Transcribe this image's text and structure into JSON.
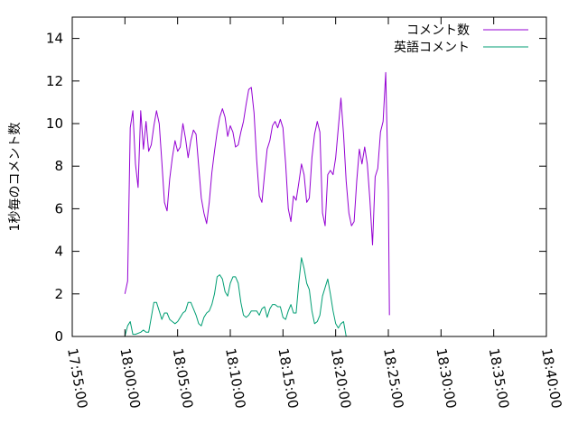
{
  "chart_data": {
    "type": "line",
    "title": "",
    "xlabel": "",
    "ylabel": "1秒毎のコメント数",
    "xlim": [
      "17:55:00",
      "18:40:00"
    ],
    "ylim": [
      0,
      15
    ],
    "x_ticks": [
      "17:55:00",
      "18:00:00",
      "18:05:00",
      "18:10:00",
      "18:15:00",
      "18:20:00",
      "18:25:00",
      "18:30:00",
      "18:35:00",
      "18:40:00"
    ],
    "y_ticks": [
      0,
      2,
      4,
      6,
      8,
      10,
      12,
      14
    ],
    "grid": false,
    "legend_position": "top-right",
    "series": [
      {
        "name": "コメント数",
        "color": "#9400d3",
        "points": [
          [
            "18:00:00",
            2.0
          ],
          [
            "18:00:15",
            2.6
          ],
          [
            "18:00:30",
            9.8
          ],
          [
            "18:00:45",
            10.6
          ],
          [
            "18:01:00",
            8.1
          ],
          [
            "18:01:15",
            7.0
          ],
          [
            "18:01:30",
            10.6
          ],
          [
            "18:01:45",
            8.8
          ],
          [
            "18:02:00",
            10.1
          ],
          [
            "18:02:15",
            8.7
          ],
          [
            "18:02:30",
            9.0
          ],
          [
            "18:02:45",
            9.9
          ],
          [
            "18:03:00",
            10.6
          ],
          [
            "18:03:15",
            10.0
          ],
          [
            "18:03:30",
            8.2
          ],
          [
            "18:03:45",
            6.3
          ],
          [
            "18:04:00",
            5.9
          ],
          [
            "18:04:15",
            7.4
          ],
          [
            "18:04:30",
            8.4
          ],
          [
            "18:04:45",
            9.2
          ],
          [
            "18:05:00",
            8.7
          ],
          [
            "18:05:15",
            8.9
          ],
          [
            "18:05:30",
            10.0
          ],
          [
            "18:05:45",
            9.3
          ],
          [
            "18:06:00",
            8.4
          ],
          [
            "18:06:15",
            9.2
          ],
          [
            "18:06:30",
            9.7
          ],
          [
            "18:06:45",
            9.5
          ],
          [
            "18:07:00",
            8.0
          ],
          [
            "18:07:15",
            6.5
          ],
          [
            "18:07:30",
            5.8
          ],
          [
            "18:07:45",
            5.3
          ],
          [
            "18:08:00",
            6.3
          ],
          [
            "18:08:15",
            7.7
          ],
          [
            "18:08:30",
            8.7
          ],
          [
            "18:08:45",
            9.6
          ],
          [
            "18:09:00",
            10.3
          ],
          [
            "18:09:15",
            10.7
          ],
          [
            "18:09:30",
            10.3
          ],
          [
            "18:09:45",
            9.4
          ],
          [
            "18:10:00",
            9.9
          ],
          [
            "18:10:15",
            9.6
          ],
          [
            "18:10:30",
            8.9
          ],
          [
            "18:10:45",
            9.0
          ],
          [
            "18:11:00",
            9.6
          ],
          [
            "18:11:15",
            10.1
          ],
          [
            "18:11:30",
            10.9
          ],
          [
            "18:11:45",
            11.6
          ],
          [
            "18:12:00",
            11.7
          ],
          [
            "18:12:15",
            10.5
          ],
          [
            "18:12:30",
            8.3
          ],
          [
            "18:12:45",
            6.6
          ],
          [
            "18:13:00",
            6.3
          ],
          [
            "18:13:15",
            7.6
          ],
          [
            "18:13:30",
            8.8
          ],
          [
            "18:13:45",
            9.2
          ],
          [
            "18:14:00",
            9.9
          ],
          [
            "18:14:15",
            10.1
          ],
          [
            "18:14:30",
            9.8
          ],
          [
            "18:14:45",
            10.2
          ],
          [
            "18:15:00",
            9.8
          ],
          [
            "18:15:15",
            8.1
          ],
          [
            "18:15:30",
            6.0
          ],
          [
            "18:15:45",
            5.4
          ],
          [
            "18:16:00",
            6.6
          ],
          [
            "18:16:15",
            6.4
          ],
          [
            "18:16:30",
            7.2
          ],
          [
            "18:16:45",
            8.1
          ],
          [
            "18:17:00",
            7.6
          ],
          [
            "18:17:15",
            6.3
          ],
          [
            "18:17:30",
            6.5
          ],
          [
            "18:17:45",
            8.4
          ],
          [
            "18:18:00",
            9.5
          ],
          [
            "18:18:15",
            10.1
          ],
          [
            "18:18:30",
            9.6
          ],
          [
            "18:18:45",
            5.8
          ],
          [
            "18:19:00",
            5.2
          ],
          [
            "18:19:15",
            7.6
          ],
          [
            "18:19:30",
            7.8
          ],
          [
            "18:19:45",
            7.6
          ],
          [
            "18:20:00",
            8.4
          ],
          [
            "18:20:15",
            9.8
          ],
          [
            "18:20:30",
            11.2
          ],
          [
            "18:20:45",
            9.5
          ],
          [
            "18:21:00",
            7.3
          ],
          [
            "18:21:15",
            5.8
          ],
          [
            "18:21:30",
            5.2
          ],
          [
            "18:21:45",
            5.4
          ],
          [
            "18:22:00",
            7.3
          ],
          [
            "18:22:15",
            8.8
          ],
          [
            "18:22:30",
            8.1
          ],
          [
            "18:22:45",
            8.9
          ],
          [
            "18:23:00",
            8.1
          ],
          [
            "18:23:15",
            6.4
          ],
          [
            "18:23:30",
            4.3
          ],
          [
            "18:23:45",
            7.5
          ],
          [
            "18:24:00",
            7.9
          ],
          [
            "18:24:15",
            9.6
          ],
          [
            "18:24:30",
            10.1
          ],
          [
            "18:24:45",
            12.4
          ],
          [
            "18:25:00",
            6.8
          ],
          [
            "18:25:06",
            1.0
          ]
        ]
      },
      {
        "name": "英語コメント",
        "color": "#009e73",
        "points": [
          [
            "18:00:00",
            0.0
          ],
          [
            "18:00:15",
            0.5
          ],
          [
            "18:00:30",
            0.7
          ],
          [
            "18:00:45",
            0.1
          ],
          [
            "18:01:00",
            0.1
          ],
          [
            "18:01:30",
            0.2
          ],
          [
            "18:01:45",
            0.3
          ],
          [
            "18:02:00",
            0.2
          ],
          [
            "18:02:15",
            0.2
          ],
          [
            "18:02:30",
            0.9
          ],
          [
            "18:02:45",
            1.6
          ],
          [
            "18:03:00",
            1.6
          ],
          [
            "18:03:15",
            1.2
          ],
          [
            "18:03:30",
            0.8
          ],
          [
            "18:03:45",
            1.1
          ],
          [
            "18:04:00",
            1.1
          ],
          [
            "18:04:15",
            0.8
          ],
          [
            "18:04:30",
            0.7
          ],
          [
            "18:04:45",
            0.6
          ],
          [
            "18:05:00",
            0.7
          ],
          [
            "18:05:15",
            0.9
          ],
          [
            "18:05:30",
            1.1
          ],
          [
            "18:05:45",
            1.2
          ],
          [
            "18:06:00",
            1.6
          ],
          [
            "18:06:15",
            1.6
          ],
          [
            "18:06:30",
            1.3
          ],
          [
            "18:06:45",
            1.0
          ],
          [
            "18:07:00",
            0.6
          ],
          [
            "18:07:15",
            0.5
          ],
          [
            "18:07:30",
            0.9
          ],
          [
            "18:07:45",
            1.1
          ],
          [
            "18:08:00",
            1.2
          ],
          [
            "18:08:15",
            1.5
          ],
          [
            "18:08:30",
            2.0
          ],
          [
            "18:08:45",
            2.8
          ],
          [
            "18:09:00",
            2.9
          ],
          [
            "18:09:15",
            2.7
          ],
          [
            "18:09:30",
            2.1
          ],
          [
            "18:09:45",
            1.9
          ],
          [
            "18:10:00",
            2.5
          ],
          [
            "18:10:15",
            2.8
          ],
          [
            "18:10:30",
            2.8
          ],
          [
            "18:10:45",
            2.5
          ],
          [
            "18:11:00",
            1.6
          ],
          [
            "18:11:15",
            1.0
          ],
          [
            "18:11:30",
            0.9
          ],
          [
            "18:11:45",
            1.0
          ],
          [
            "18:12:00",
            1.2
          ],
          [
            "18:12:15",
            1.2
          ],
          [
            "18:12:30",
            1.2
          ],
          [
            "18:12:45",
            1.0
          ],
          [
            "18:13:00",
            1.3
          ],
          [
            "18:13:15",
            1.4
          ],
          [
            "18:13:30",
            0.9
          ],
          [
            "18:13:45",
            1.3
          ],
          [
            "18:14:00",
            1.5
          ],
          [
            "18:14:15",
            1.5
          ],
          [
            "18:14:30",
            1.4
          ],
          [
            "18:14:45",
            1.4
          ],
          [
            "18:15:00",
            0.9
          ],
          [
            "18:15:15",
            0.8
          ],
          [
            "18:15:30",
            1.2
          ],
          [
            "18:15:45",
            1.5
          ],
          [
            "18:16:00",
            1.1
          ],
          [
            "18:16:15",
            1.1
          ],
          [
            "18:16:30",
            2.5
          ],
          [
            "18:16:45",
            3.7
          ],
          [
            "18:17:00",
            3.2
          ],
          [
            "18:17:15",
            2.5
          ],
          [
            "18:17:30",
            2.2
          ],
          [
            "18:17:45",
            1.2
          ],
          [
            "18:18:00",
            0.6
          ],
          [
            "18:18:15",
            0.7
          ],
          [
            "18:18:30",
            1.0
          ],
          [
            "18:18:45",
            1.9
          ],
          [
            "18:19:00",
            2.3
          ],
          [
            "18:19:15",
            2.7
          ],
          [
            "18:19:30",
            2.0
          ],
          [
            "18:19:45",
            1.2
          ],
          [
            "18:20:00",
            0.6
          ],
          [
            "18:20:15",
            0.4
          ],
          [
            "18:20:30",
            0.6
          ],
          [
            "18:20:45",
            0.7
          ],
          [
            "18:21:00",
            0.0
          ]
        ]
      }
    ]
  }
}
